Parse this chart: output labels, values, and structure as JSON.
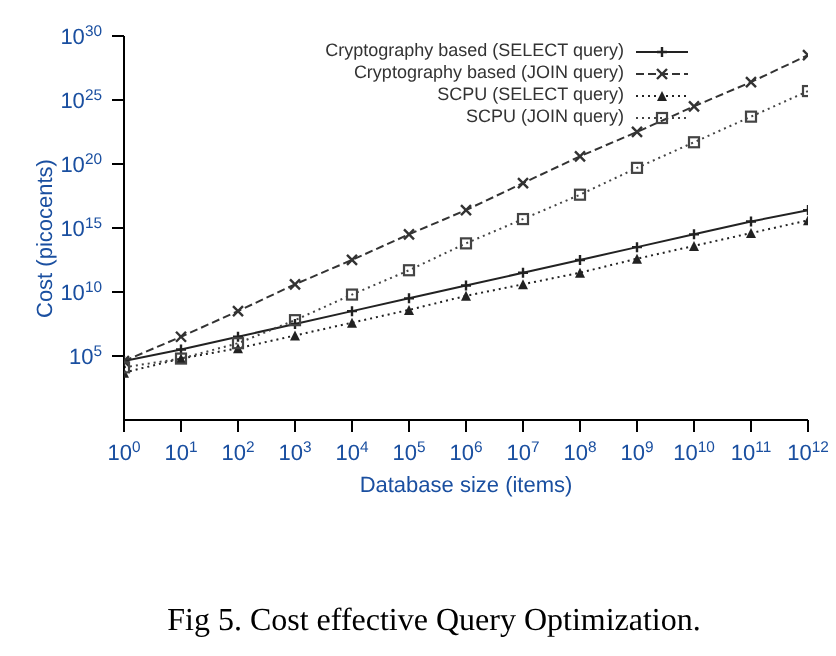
{
  "chart_data": {
    "type": "line",
    "xlabel": "Database size (items)",
    "ylabel": "Cost (picocents)",
    "annotations": [
      "Fig 5. Cost effective Query Optimization."
    ],
    "log": "xy",
    "grid": false,
    "legend": "top right",
    "x": [
      1,
      10,
      100,
      1000,
      10000,
      100000,
      1000000,
      10000000,
      100000000,
      1000000000,
      10000000000,
      100000000000,
      1000000000000
    ],
    "xlim": [
      1,
      1000000000000
    ],
    "xticks": [
      {
        "value": 1,
        "label": "10$^{0}$"
      },
      {
        "value": 10,
        "label": "10$^{1}$"
      },
      {
        "value": 100,
        "label": "10$^{2}$"
      },
      {
        "value": 1000,
        "label": "10$^{3}$"
      },
      {
        "value": 10000,
        "label": "10$^{4}$"
      },
      {
        "value": 100000,
        "label": "10$^{5}$"
      },
      {
        "value": 1000000,
        "label": "10$^{6}$"
      },
      {
        "value": 10000000,
        "label": "10$^{7}$"
      },
      {
        "value": 100000000,
        "label": "10$^{8}$"
      },
      {
        "value": 1000000000,
        "label": "10$^{9}$"
      },
      {
        "value": 10000000000,
        "label": "10$^{10}$"
      },
      {
        "value": 100000000000,
        "label": "10$^{11}$"
      },
      {
        "value": 1000000000000,
        "label": "10$^{12}$"
      }
    ],
    "ylim": [
      1,
      1e+30
    ],
    "yticks": [
      {
        "value": 100000,
        "label": "10$^{5}$"
      },
      {
        "value": 10000000000.0,
        "label": "10$^{10}$"
      },
      {
        "value": 1000000000000000.0,
        "label": "10$^{15}$"
      },
      {
        "value": 1e+20,
        "label": "10$^{20}$"
      },
      {
        "value": 1e+25,
        "label": "10$^{25}$"
      },
      {
        "value": 1e+30,
        "label": "10$^{30}$"
      }
    ],
    "series": [
      {
        "name": "Cryptography based (SELECT query)",
        "color": "#222222",
        "marker": "plus",
        "line_style": "solid",
        "values": [
          40000.0,
          320000.0,
          3200000.0,
          32000000.0,
          320000000.0,
          3200000000.0,
          32000000000.0,
          320000000000.0,
          3200000000000.0,
          32000000000000.0,
          320000000000000.0,
          3200000000000000.0,
          2.5e+16
        ]
      },
      {
        "name": "Cryptography based (JOIN query)",
        "color": "#333333",
        "marker": "cross",
        "line_style": "dashed",
        "values": [
          40000.0,
          3200000.0,
          320000000.0,
          40000000000.0,
          3200000000000.0,
          320000000000000.0,
          2.5e+16,
          3.2e+18,
          4e+20,
          3.2e+22,
          3.2e+24,
          2.5e+26,
          3.2e+28
        ]
      },
      {
        "name": "SCPU (SELECT query)",
        "color": "#222222",
        "marker": "triangle",
        "line_style": "dotted",
        "values": [
          5000.0,
          63000.0,
          400000.0,
          4000000.0,
          40000000.0,
          400000000.0,
          5000000000.0,
          40000000000.0,
          320000000000.0,
          4000000000000.0,
          40000000000000.0,
          400000000000000.0,
          4000000000000000.0
        ]
      },
      {
        "name": "SCPU (JOIN query)",
        "color": "#444444",
        "marker": "square",
        "line_style": "dotted",
        "values": [
          13000.0,
          63000.0,
          1000000.0,
          63000000.0,
          6300000000.0,
          500000000000.0,
          63000000000000.0,
          5000000000000000.0,
          4e+17,
          5e+19,
          5e+21,
          5e+23,
          5e+25
        ]
      }
    ]
  }
}
